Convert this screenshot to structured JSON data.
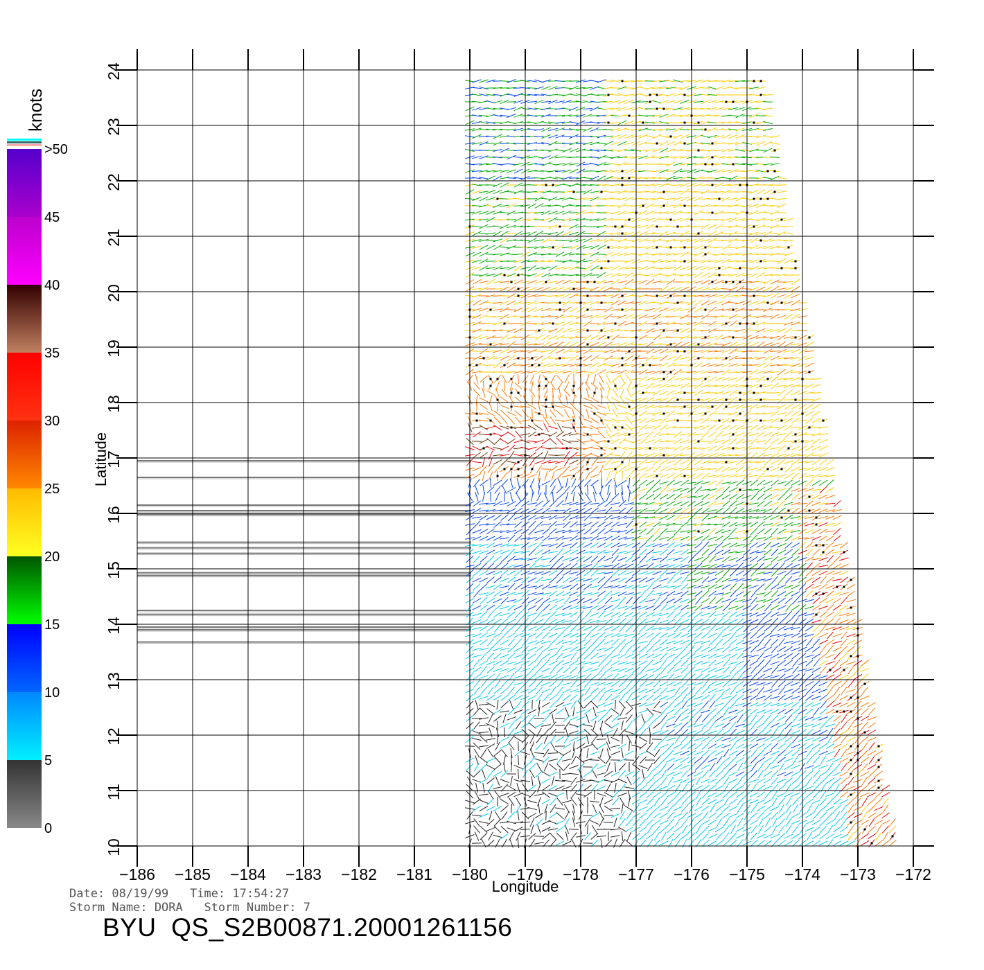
{
  "map": {
    "x_axis": {
      "label": "Longitude",
      "ticks": [
        -186,
        -185,
        -184,
        -183,
        -182,
        -181,
        -180,
        -179,
        -178,
        -177,
        -176,
        -175,
        -174,
        -173,
        -172
      ]
    },
    "y_axis": {
      "label": "Latitude",
      "ticks": [
        10,
        11,
        12,
        13,
        14,
        15,
        16,
        17,
        18,
        19,
        20,
        21,
        22,
        23,
        24
      ]
    },
    "grid": true,
    "swath": {
      "lon_left": -180.0,
      "top_lon_right": -174.7,
      "bottom_lon_right": -172.3,
      "lat_range": [
        10,
        24
      ]
    },
    "missing_data_scanlines_lat": [
      16.95,
      16.65,
      16.15,
      16.05,
      15.98,
      15.48,
      15.38,
      15.28,
      14.93,
      14.88,
      14.25,
      14.18,
      13.95,
      13.9,
      13.68
    ]
  },
  "legend": {
    "unit_label": "knots",
    "labels": [
      {
        "text": ">50",
        "value": 50
      },
      {
        "text": "45",
        "value": 45
      },
      {
        "text": "40",
        "value": 40
      },
      {
        "text": "35",
        "value": 35
      },
      {
        "text": "30",
        "value": 30
      },
      {
        "text": "25",
        "value": 25
      },
      {
        "text": "20",
        "value": 20
      },
      {
        "text": "15",
        "value": 15
      },
      {
        "text": "10",
        "value": 10
      },
      {
        "text": "5",
        "value": 5
      },
      {
        "text": "0",
        "value": 0
      }
    ],
    "bands": [
      {
        "from": 0,
        "to": 5,
        "top": "#333333",
        "bottom": "#888888"
      },
      {
        "from": 5,
        "to": 10,
        "top": "#0088ff",
        "bottom": "#00f0ff"
      },
      {
        "from": 10,
        "to": 15,
        "top": "#0000ff",
        "bottom": "#0066ff"
      },
      {
        "from": 15,
        "to": 20,
        "top": "#005500",
        "bottom": "#00ff00"
      },
      {
        "from": 20,
        "to": 25,
        "top": "#ffbb00",
        "bottom": "#ffff22"
      },
      {
        "from": 25,
        "to": 30,
        "top": "#dd2200",
        "bottom": "#ff8800"
      },
      {
        "from": 30,
        "to": 35,
        "top": "#ff0000",
        "bottom": "#ff3311"
      },
      {
        "from": 35,
        "to": 40,
        "top": "#330000",
        "bottom": "#c08060"
      },
      {
        "from": 40,
        "to": 45,
        "top": "#bb00cc",
        "bottom": "#ff00ff"
      },
      {
        "from": 45,
        "to": 50,
        "top": "#5500cc",
        "bottom": "#aa00cc"
      }
    ],
    "extra_colors": [
      "#00ffff",
      "#336666",
      "#ffaaaa"
    ]
  },
  "wind_colors": {
    "calm": "#222222",
    "cyan": "#00ccee",
    "blue": "#0044ee",
    "green": "#00aa00",
    "yellow": "#ffcc00",
    "orange": "#ff7700",
    "red": "#ee0000",
    "brown": "#663300",
    "purple": "#7700cc"
  },
  "info": {
    "line1": "Date: 08/19/99   Time: 17:54:27",
    "line2": "Storm Name: DORA   Storm Number: 7",
    "title": "BYU  QS_S2B00871.20001261156"
  }
}
